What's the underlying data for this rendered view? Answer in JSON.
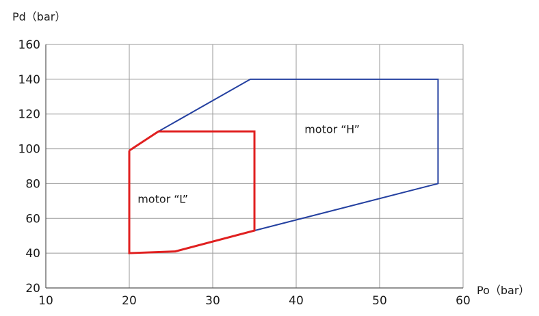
{
  "chart_data": {
    "type": "line",
    "xlabel": "Po（bar）",
    "ylabel": "Pd（bar）",
    "xlim": [
      10,
      60
    ],
    "ylim": [
      20,
      160
    ],
    "x_ticks": [
      10,
      20,
      30,
      40,
      50,
      60
    ],
    "y_ticks": [
      20,
      40,
      60,
      80,
      100,
      120,
      140,
      160
    ],
    "grid": true,
    "series": [
      {
        "name": "motor “H”",
        "color": "#2440a0",
        "x": [
          20,
          23.5,
          34.5,
          57,
          57,
          35,
          25.5,
          20,
          20
        ],
        "y": [
          99,
          110,
          140,
          140,
          80,
          53,
          41,
          40,
          99
        ]
      },
      {
        "name": "motor “L”",
        "color": "#e02020",
        "x": [
          20,
          23.5,
          35,
          35,
          25.5,
          20,
          20
        ],
        "y": [
          99,
          110,
          110,
          53,
          41,
          40,
          99
        ]
      }
    ],
    "annotations": [
      {
        "text": "motor “H”",
        "x": 41,
        "y": 109
      },
      {
        "text": "motor “L”",
        "x": 21,
        "y": 69
      }
    ]
  }
}
